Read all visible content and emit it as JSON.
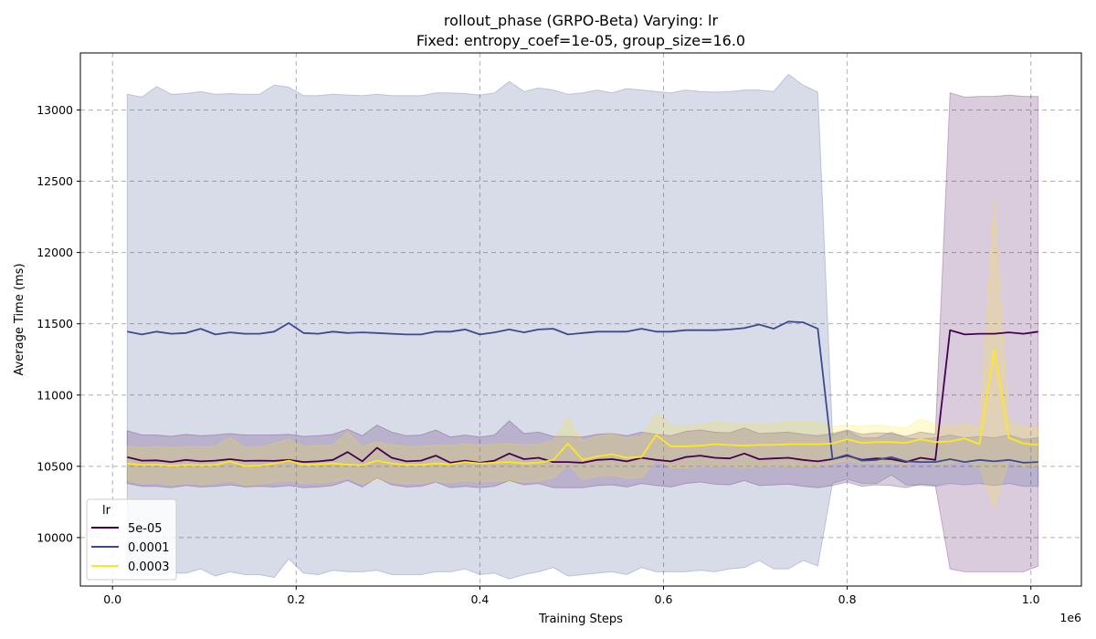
{
  "chart_data": {
    "type": "line",
    "title": "rollout_phase (GRPO-Beta) Varying: lr",
    "subtitle": "Fixed: entropy_coef=1e-05, group_size=16.0",
    "xlabel": "Training Steps",
    "ylabel": "Average Time (ms)",
    "x_offset_label": "1e6",
    "xlim": [
      -0.035,
      1.055
    ],
    "ylim": [
      9660,
      13400
    ],
    "x_ticks": [
      0.0,
      0.2,
      0.4,
      0.6,
      0.8,
      1.0
    ],
    "x_tick_labels": [
      "0.0",
      "0.2",
      "0.4",
      "0.6",
      "0.8",
      "1.0"
    ],
    "y_ticks": [
      10000,
      10500,
      11000,
      11500,
      12000,
      12500,
      13000
    ],
    "y_tick_labels": [
      "10000",
      "10500",
      "11000",
      "11500",
      "12000",
      "12500",
      "13000"
    ],
    "grid": true,
    "legend": {
      "title": "lr",
      "position": "lower-left"
    },
    "x": [
      0.016,
      0.032,
      0.048,
      0.064,
      0.08,
      0.096,
      0.112,
      0.128,
      0.144,
      0.16,
      0.176,
      0.192,
      0.208,
      0.224,
      0.24,
      0.256,
      0.272,
      0.288,
      0.304,
      0.32,
      0.336,
      0.352,
      0.368,
      0.384,
      0.4,
      0.416,
      0.432,
      0.448,
      0.464,
      0.48,
      0.496,
      0.512,
      0.528,
      0.544,
      0.56,
      0.576,
      0.592,
      0.608,
      0.624,
      0.64,
      0.656,
      0.672,
      0.688,
      0.704,
      0.72,
      0.736,
      0.752,
      0.768,
      0.784,
      0.8,
      0.816,
      0.832,
      0.848,
      0.864,
      0.88,
      0.896,
      0.912,
      0.928,
      0.944,
      0.96,
      0.976,
      0.992,
      1.008
    ],
    "series": [
      {
        "name": "5e-05",
        "color": "#440154",
        "values": [
          10565,
          10540,
          10542,
          10530,
          10545,
          10535,
          10540,
          10550,
          10538,
          10540,
          10538,
          10545,
          10530,
          10535,
          10545,
          10600,
          10535,
          10630,
          10560,
          10535,
          10540,
          10575,
          10525,
          10540,
          10525,
          10540,
          10590,
          10550,
          10560,
          10530,
          10530,
          10525,
          10545,
          10550,
          10535,
          10560,
          10545,
          10535,
          10565,
          10575,
          10560,
          10555,
          10590,
          10550,
          10555,
          10560,
          10545,
          10535,
          10550,
          10575,
          10545,
          10555,
          10550,
          10530,
          10560,
          10545,
          11455,
          11425,
          11430,
          11430,
          11440,
          11430,
          11445
        ],
        "lower": [
          10380,
          10360,
          10360,
          10350,
          10365,
          10355,
          10360,
          10370,
          10355,
          10360,
          10355,
          10365,
          10350,
          10355,
          10365,
          10400,
          10355,
          10420,
          10370,
          10355,
          10360,
          10390,
          10350,
          10360,
          10350,
          10360,
          10400,
          10370,
          10380,
          10350,
          10350,
          10350,
          10365,
          10370,
          10355,
          10380,
          10365,
          10355,
          10380,
          10390,
          10375,
          10370,
          10400,
          10365,
          10370,
          10375,
          10360,
          10350,
          10365,
          10390,
          10360,
          10370,
          10365,
          10350,
          10375,
          10365,
          9780,
          9760,
          9760,
          9760,
          9760,
          9760,
          9800
        ],
        "upper": [
          10750,
          10720,
          10720,
          10710,
          10725,
          10715,
          10720,
          10730,
          10720,
          10720,
          10720,
          10725,
          10710,
          10715,
          10725,
          10760,
          10715,
          10790,
          10740,
          10715,
          10720,
          10755,
          10705,
          10720,
          10705,
          10720,
          10820,
          10730,
          10740,
          10710,
          10710,
          10705,
          10725,
          10730,
          10715,
          10740,
          10725,
          10715,
          10745,
          10755,
          10740,
          10735,
          10770,
          10730,
          10735,
          10740,
          10725,
          10715,
          10730,
          10755,
          10725,
          10735,
          10730,
          10710,
          10740,
          10725,
          13120,
          13090,
          13095,
          13095,
          13105,
          13095,
          13095
        ]
      },
      {
        "name": "0.0001",
        "color": "#3b4b8c",
        "values": [
          11445,
          11425,
          11445,
          11430,
          11435,
          11465,
          11425,
          11440,
          11430,
          11430,
          11445,
          11505,
          11435,
          11430,
          11445,
          11435,
          11440,
          11435,
          11430,
          11425,
          11425,
          11445,
          11445,
          11460,
          11425,
          11440,
          11460,
          11440,
          11460,
          11465,
          11425,
          11435,
          11445,
          11445,
          11445,
          11465,
          11445,
          11445,
          11455,
          11455,
          11455,
          11460,
          11470,
          11495,
          11465,
          11515,
          11510,
          11465,
          10550,
          10580,
          10540,
          10545,
          10565,
          10535,
          10530,
          10530,
          10550,
          10530,
          10545,
          10535,
          10545,
          10525,
          10530
        ],
        "lower": [
          9760,
          9740,
          9740,
          9750,
          9750,
          9780,
          9730,
          9760,
          9740,
          9740,
          9720,
          9850,
          9750,
          9740,
          9770,
          9760,
          9760,
          9770,
          9740,
          9740,
          9740,
          9760,
          9760,
          9780,
          9740,
          9750,
          9710,
          9740,
          9760,
          9790,
          9730,
          9740,
          9750,
          9760,
          9740,
          9790,
          9760,
          9760,
          9760,
          9770,
          9760,
          9780,
          9790,
          9840,
          9780,
          9780,
          9840,
          9800,
          10380,
          10410,
          10380,
          10380,
          10440,
          10370,
          10365,
          10360,
          10380,
          10370,
          10380,
          10365,
          10380,
          10360,
          10360
        ],
        "upper": [
          13110,
          13090,
          13165,
          13110,
          13115,
          13130,
          13110,
          13115,
          13110,
          13110,
          13175,
          13160,
          13100,
          13100,
          13110,
          13105,
          13100,
          13110,
          13100,
          13100,
          13100,
          13120,
          13120,
          13115,
          13105,
          13120,
          13200,
          13130,
          13155,
          13140,
          13110,
          13120,
          13140,
          13120,
          13150,
          13140,
          13130,
          13120,
          13140,
          13130,
          13125,
          13130,
          13140,
          13140,
          13130,
          13250,
          13175,
          13125,
          10720,
          10750,
          10700,
          10700,
          10740,
          10700,
          10690,
          10700,
          10720,
          10700,
          10710,
          10700,
          10720,
          10690,
          10700
        ]
      },
      {
        "name": "0.0003",
        "color": "#fde725",
        "values": [
          10520,
          10510,
          10512,
          10505,
          10510,
          10508,
          10510,
          10535,
          10502,
          10505,
          10520,
          10540,
          10510,
          10515,
          10520,
          10512,
          10508,
          10540,
          10520,
          10510,
          10510,
          10520,
          10515,
          10530,
          10520,
          10525,
          10530,
          10520,
          10525,
          10545,
          10660,
          10545,
          10570,
          10585,
          10560,
          10565,
          10720,
          10640,
          10640,
          10645,
          10655,
          10650,
          10645,
          10650,
          10650,
          10655,
          10655,
          10655,
          10660,
          10690,
          10665,
          10670,
          10670,
          10665,
          10690,
          10670,
          10675,
          10695,
          10655,
          11320,
          10700,
          10660,
          10650
        ],
        "lower": [
          10400,
          10380,
          10385,
          10370,
          10380,
          10375,
          10380,
          10400,
          10370,
          10375,
          10390,
          10400,
          10380,
          10385,
          10390,
          10420,
          10375,
          10410,
          10390,
          10380,
          10380,
          10395,
          10385,
          10400,
          10390,
          10395,
          10400,
          10390,
          10395,
          10420,
          10510,
          10410,
          10430,
          10440,
          10415,
          10420,
          10540,
          10490,
          10490,
          10495,
          10500,
          10495,
          10490,
          10500,
          10495,
          10500,
          10500,
          10500,
          10520,
          10540,
          10520,
          10520,
          10520,
          10515,
          10540,
          10515,
          10520,
          10540,
          10500,
          10210,
          10540,
          10500,
          10500
        ],
        "upper": [
          10640,
          10630,
          10640,
          10630,
          10640,
          10635,
          10640,
          10700,
          10635,
          10635,
          10660,
          10690,
          10640,
          10645,
          10650,
          10740,
          10640,
          10670,
          10650,
          10640,
          10640,
          10650,
          10645,
          10660,
          10650,
          10655,
          10660,
          10650,
          10655,
          10680,
          10840,
          10680,
          10710,
          10730,
          10700,
          10710,
          10870,
          10790,
          10790,
          10795,
          10810,
          10805,
          10800,
          10800,
          10805,
          10810,
          10810,
          10810,
          10780,
          10790,
          10780,
          10790,
          10780,
          10770,
          10830,
          10800,
          10780,
          10800,
          10770,
          12380,
          10810,
          10780,
          10770
        ]
      }
    ]
  }
}
